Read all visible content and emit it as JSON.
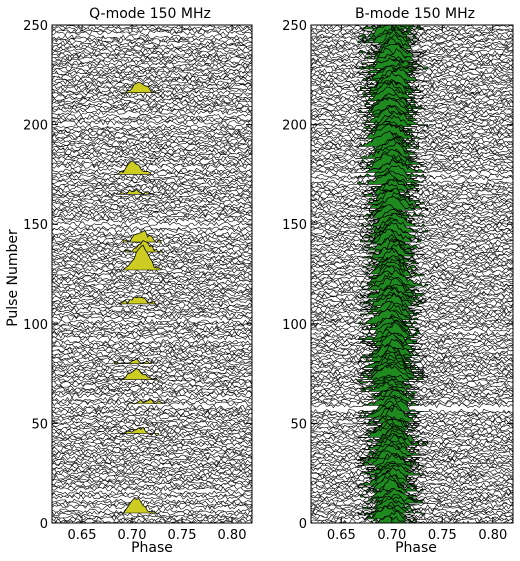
{
  "chart_data": [
    {
      "type": "stacked-line",
      "title": "Q-mode 150 MHz",
      "xlabel": "Phase",
      "ylabel": "Pulse Number",
      "xlim": [
        0.62,
        0.82
      ],
      "ylim": [
        0,
        250
      ],
      "xticks": [
        0.65,
        0.7,
        0.75,
        0.8
      ],
      "xtick_labels": [
        "0.65",
        "0.70",
        "0.75",
        "0.80"
      ],
      "yticks": [
        0,
        50,
        100,
        150,
        200,
        250
      ],
      "ytick_labels": [
        "0",
        "50",
        "100",
        "150",
        "200",
        "250"
      ],
      "fill_color": "#cccc22",
      "blank_pulses": [
        7,
        12,
        16,
        59,
        63,
        92,
        102,
        146,
        149,
        151,
        178,
        200,
        205,
        245
      ],
      "pulse_components": [
        {
          "pulse": 5,
          "phase": 0.705,
          "height": 8
        },
        {
          "pulse": 45,
          "phase": 0.707,
          "height": 3
        },
        {
          "pulse": 60,
          "phase": 0.715,
          "height": 2
        },
        {
          "pulse": 72,
          "phase": 0.705,
          "height": 6
        },
        {
          "pulse": 80,
          "phase": 0.702,
          "height": 2
        },
        {
          "pulse": 110,
          "phase": 0.705,
          "height": 4
        },
        {
          "pulse": 127,
          "phase": 0.71,
          "height": 14
        },
        {
          "pulse": 136,
          "phase": 0.712,
          "height": 6
        },
        {
          "pulse": 141,
          "phase": 0.71,
          "height": 6
        },
        {
          "pulse": 165,
          "phase": 0.703,
          "height": 2
        },
        {
          "pulse": 175,
          "phase": 0.702,
          "height": 7
        },
        {
          "pulse": 216,
          "phase": 0.708,
          "height": 6
        }
      ]
    },
    {
      "type": "stacked-line",
      "title": "B-mode 150 MHz",
      "xlabel": "Phase",
      "ylabel": "",
      "xlim": [
        0.62,
        0.82
      ],
      "ylim": [
        0,
        250
      ],
      "xticks": [
        0.65,
        0.7,
        0.75,
        0.8
      ],
      "xtick_labels": [
        "0.65",
        "0.70",
        "0.75",
        "0.80"
      ],
      "yticks": [
        0,
        50,
        100,
        150,
        200,
        250
      ],
      "ytick_labels": [
        "0",
        "50",
        "100",
        "150",
        "200",
        "250"
      ],
      "fill_color": "#1f8a1f",
      "blank_pulses": [
        57,
        58,
        96,
        172,
        175
      ],
      "component_phase": 0.7,
      "component_width": 0.012,
      "component_height_range": [
        3,
        8
      ]
    }
  ]
}
